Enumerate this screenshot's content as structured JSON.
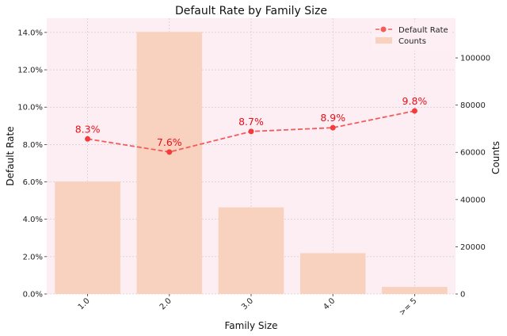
{
  "chart_data": {
    "type": "bar",
    "title": "Default Rate by Family Size",
    "xlabel": "Family Size",
    "ylabel_left": "Default Rate",
    "ylabel_right": "Counts",
    "categories": [
      "1.0",
      "2.0",
      "3.0",
      "4.0",
      ">= 5"
    ],
    "series": [
      {
        "name": "Counts",
        "type": "bar",
        "axis": "right",
        "color": "#f9d1bf",
        "values": [
          47600,
          111000,
          36700,
          17300,
          3000
        ]
      },
      {
        "name": "Default Rate",
        "type": "line",
        "axis": "left",
        "color": "#f55b5b",
        "values": [
          8.3,
          7.6,
          8.7,
          8.9,
          9.8
        ],
        "data_labels": [
          "8.3%",
          "7.6%",
          "8.7%",
          "8.9%",
          "9.8%"
        ]
      }
    ],
    "left_axis": {
      "ylim": [
        0,
        14.76
      ],
      "ticks": [
        0,
        2,
        4,
        6,
        8,
        10,
        12,
        14
      ],
      "tick_labels": [
        "0.0%",
        "2.0%",
        "4.0%",
        "6.0%",
        "8.0%",
        "10.0%",
        "12.0%",
        "14.0%"
      ]
    },
    "right_axis": {
      "ylim": [
        0,
        116800
      ],
      "ticks": [
        0,
        20000,
        40000,
        60000,
        80000,
        100000
      ],
      "tick_labels": [
        "0",
        "20000",
        "40000",
        "60000",
        "80000",
        "100000"
      ]
    },
    "grid": true,
    "legend": "top-right",
    "background_color": "#fdeef3"
  }
}
